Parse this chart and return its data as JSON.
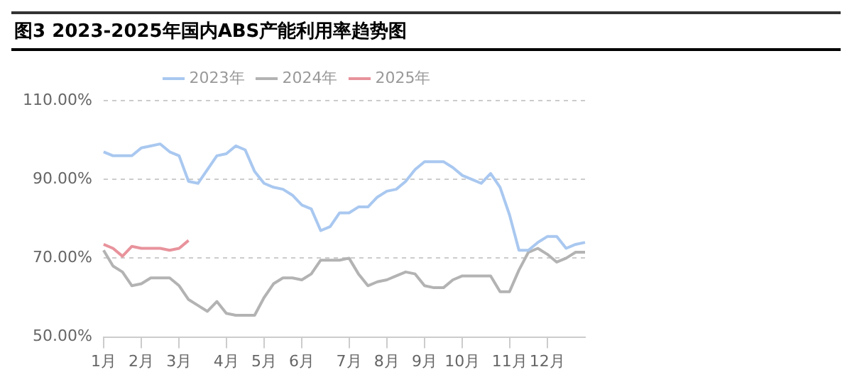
{
  "chart_data": {
    "type": "line",
    "title": "图3 2023-2025年国内ABS产能利用率趋势图",
    "categories": [
      "1月",
      null,
      null,
      null,
      "2月",
      null,
      null,
      null,
      "3月",
      null,
      null,
      null,
      null,
      "4月",
      null,
      null,
      null,
      "5月",
      null,
      null,
      null,
      "6月",
      null,
      null,
      null,
      null,
      "7月",
      null,
      null,
      null,
      "8月",
      null,
      null,
      null,
      "9月",
      null,
      null,
      null,
      "10月",
      null,
      null,
      null,
      null,
      "11月",
      null,
      null,
      null,
      "12月",
      null,
      null,
      null,
      null
    ],
    "series": [
      {
        "name": "2023年",
        "color": "#a9c8f0",
        "values": [
          97,
          96,
          96,
          96,
          98,
          98.5,
          99,
          97,
          96,
          89.5,
          89,
          92.5,
          96,
          96.5,
          98.5,
          97.5,
          92,
          89,
          88,
          87.5,
          86,
          83.5,
          82.5,
          77,
          78,
          81.5,
          81.5,
          83,
          83,
          85.5,
          87,
          87.5,
          89.5,
          92.5,
          94.5,
          94.5,
          94.5,
          93,
          91,
          90,
          89,
          91.5,
          88,
          81,
          72,
          72,
          74,
          75.5,
          75.5,
          72.5,
          73.5,
          74
        ]
      },
      {
        "name": "2024年",
        "color": "#b3b3b3",
        "values": [
          72,
          68,
          66.5,
          63,
          63.5,
          65,
          65,
          65,
          63,
          59.5,
          58,
          56.5,
          59,
          56,
          55.5,
          55.5,
          55.5,
          60,
          63.5,
          65,
          65,
          64.5,
          66,
          69.5,
          69.5,
          69.5,
          70,
          66,
          63,
          64,
          64.5,
          65.5,
          66.5,
          66,
          63,
          62.5,
          62.5,
          64.5,
          65.5,
          65.5,
          65.5,
          65.5,
          61.5,
          61.5,
          67,
          71.5,
          72.5,
          71,
          69,
          70,
          71.5,
          71.5
        ]
      },
      {
        "name": "2025年",
        "color": "#e8939c",
        "values": [
          73.5,
          72.5,
          70.5,
          73,
          72.5,
          72.5,
          72.5,
          72,
          72.5,
          74.5,
          null,
          null,
          null,
          null,
          null,
          null,
          null,
          null,
          null,
          null,
          null,
          null,
          null,
          null,
          null,
          null,
          null,
          null,
          null,
          null,
          null,
          null,
          null,
          null,
          null,
          null,
          null,
          null,
          null,
          null,
          null,
          null,
          null,
          null,
          null,
          null,
          null,
          null,
          null,
          null,
          null,
          null
        ]
      }
    ],
    "ylim": [
      50,
      110
    ],
    "yticks": [
      {
        "value": 50,
        "label": "50.00%"
      },
      {
        "value": 70,
        "label": "70.00%"
      },
      {
        "value": 90,
        "label": "90.00%"
      },
      {
        "value": 110,
        "label": "110.00%"
      }
    ],
    "grid": "y",
    "legend": "top",
    "marker": "none",
    "line_style": "solid"
  }
}
